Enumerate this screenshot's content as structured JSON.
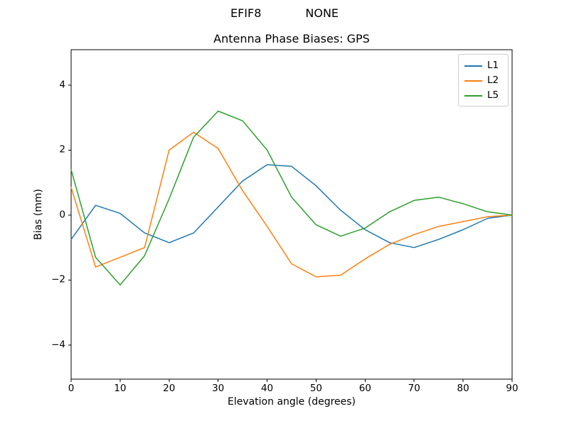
{
  "suptitle": {
    "left": "EFIF8",
    "right": "NONE"
  },
  "chart_data": {
    "type": "line",
    "title": "Antenna Phase Biases: GPS",
    "xlabel": "Elevation angle (degrees)",
    "ylabel": "Bias (mm)",
    "xlim": [
      0,
      90
    ],
    "ylim": [
      -5.05,
      5.09
    ],
    "x_ticks": [
      0,
      10,
      20,
      30,
      40,
      50,
      60,
      70,
      80,
      90
    ],
    "x_tick_labels": [
      "0",
      "10",
      "20",
      "30",
      "40",
      "50",
      "60",
      "70",
      "80",
      "90"
    ],
    "y_ticks": [
      -4,
      -2,
      0,
      2,
      4
    ],
    "y_tick_labels": [
      "−4",
      "−2",
      "0",
      "2",
      "4"
    ],
    "grid": false,
    "legend_position": "upper right",
    "x": [
      0,
      5,
      10,
      15,
      20,
      25,
      30,
      35,
      40,
      45,
      50,
      55,
      60,
      65,
      70,
      75,
      80,
      85,
      90
    ],
    "series": [
      {
        "name": "L1",
        "color": "#1f77b4",
        "values": [
          -0.75,
          0.3,
          0.05,
          -0.55,
          -0.85,
          -0.55,
          0.25,
          1.05,
          1.55,
          1.5,
          0.9,
          0.15,
          -0.45,
          -0.85,
          -1.0,
          -0.75,
          -0.45,
          -0.1,
          0.0
        ]
      },
      {
        "name": "L2",
        "color": "#ff7f0e",
        "values": [
          0.85,
          -1.6,
          -1.3,
          -1.0,
          2.0,
          2.55,
          2.05,
          0.75,
          -0.35,
          -1.5,
          -1.9,
          -1.85,
          -1.35,
          -0.9,
          -0.6,
          -0.35,
          -0.2,
          -0.05,
          0.0
        ]
      },
      {
        "name": "L5",
        "color": "#2ca02c",
        "values": [
          1.4,
          -1.3,
          -2.15,
          -1.25,
          0.5,
          2.4,
          3.2,
          2.9,
          2.0,
          0.55,
          -0.3,
          -0.65,
          -0.4,
          0.1,
          0.45,
          0.55,
          0.35,
          0.1,
          0.0
        ]
      }
    ]
  }
}
